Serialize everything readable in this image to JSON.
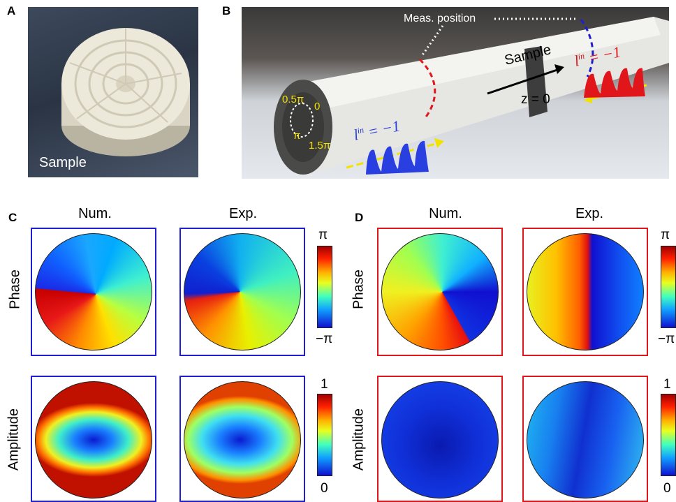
{
  "panels": {
    "a": {
      "letter": "A",
      "sample_label": "Sample"
    },
    "b": {
      "letter": "B",
      "meas_position": "Meas. position",
      "sample_label": "Sample",
      "z_label": "z = 0",
      "lin_left": "l",
      "lin_left_sup": "in",
      "lin_left_val": " = −1",
      "lin_right": "l",
      "lin_right_sup": "in",
      "lin_right_val": " = −1",
      "phase_marks": [
        "0.5π",
        "0",
        "π",
        "1.5π"
      ]
    },
    "c": {
      "letter": "C",
      "num": "Num.",
      "exp": "Exp.",
      "phase": "Phase",
      "amplitude": "Amplitude"
    },
    "d": {
      "letter": "D",
      "num": "Num.",
      "exp": "Exp.",
      "phase": "Phase",
      "amplitude": "Amplitude"
    }
  },
  "colorbars": {
    "phase": {
      "top": "π",
      "bottom": "−π"
    },
    "amplitude": {
      "top": "1",
      "bottom": "0"
    },
    "phase_d": {
      "top": "π",
      "bottom": "−π"
    },
    "amplitude_d": {
      "top": "1",
      "bottom": "0"
    }
  },
  "colors": {
    "blue_frame": "#1f1fd0",
    "red_frame": "#e0161b",
    "annotation_yellow": "#f2e200",
    "wave_blue": "#2a3fe0",
    "wave_red": "#e0161b"
  }
}
